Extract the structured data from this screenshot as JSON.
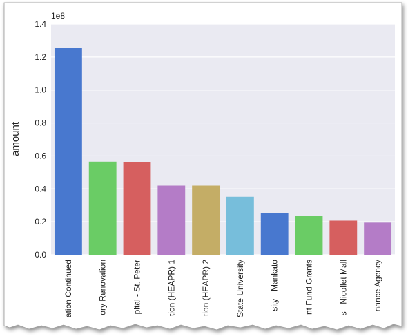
{
  "chart_data": {
    "type": "bar",
    "ylabel": "amount",
    "scale_label": "1e8",
    "ylim": [
      0,
      1.4
    ],
    "y_ticks": [
      "0.0",
      "0.2",
      "0.4",
      "0.6",
      "0.8",
      "1.0",
      "1.2",
      "1.4"
    ],
    "categories": [
      "ation Continued",
      "ory Renovation",
      "pital - St. Peter",
      "tion (HEAPR) 1",
      "tion (HEAPR) 2",
      "State University",
      "sity - Mankato",
      "nt Fund Grants",
      "s - Nicollet Mall",
      "nance Agency"
    ],
    "values": [
      1.255,
      0.565,
      0.56,
      0.42,
      0.42,
      0.352,
      0.252,
      0.238,
      0.207,
      0.195
    ],
    "colors": [
      "#4878cf",
      "#6acc65",
      "#d65f5f",
      "#b47cc7",
      "#c4ad66",
      "#77bedb",
      "#4878cf",
      "#6acc65",
      "#d65f5f",
      "#b47cc7"
    ],
    "grid": true,
    "background": "#eaeaf2"
  }
}
